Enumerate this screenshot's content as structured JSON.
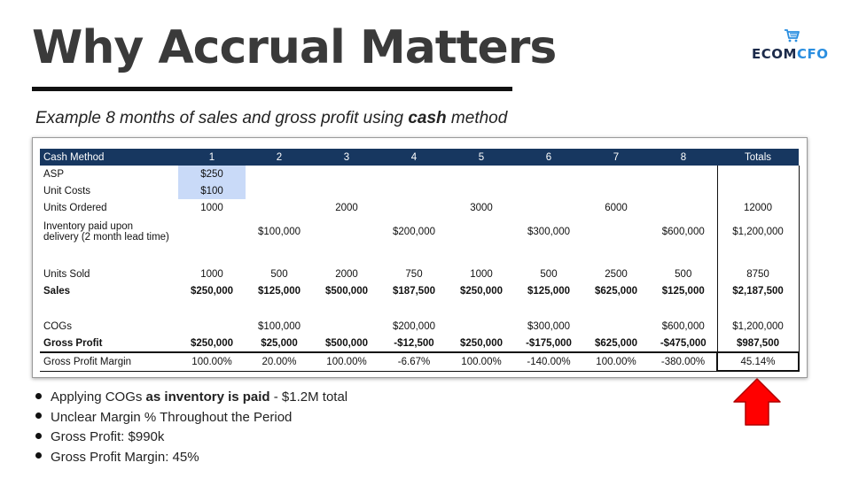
{
  "slide": {
    "title": "Why Accrual Matters",
    "subtitle_pre": "Example 8 months of sales and gross profit using ",
    "subtitle_bold": "cash",
    "subtitle_post": " method"
  },
  "logo": {
    "text_a": "ECOM",
    "text_b": "CFO",
    "icon": "shopping-cart-icon",
    "color_a": "#1b2a4a",
    "color_b": "#2a8ee0"
  },
  "table": {
    "header": [
      "Cash Method",
      "1",
      "2",
      "3",
      "4",
      "5",
      "6",
      "7",
      "8",
      "Totals"
    ],
    "rows": {
      "asp": [
        "ASP",
        "$250",
        "",
        "",
        "",
        "",
        "",
        "",
        "",
        ""
      ],
      "unit_costs": [
        "Unit Costs",
        "$100",
        "",
        "",
        "",
        "",
        "",
        "",
        "",
        ""
      ],
      "units_ordered": [
        "Units Ordered",
        "1000",
        "",
        "2000",
        "",
        "3000",
        "",
        "6000",
        "",
        "12000"
      ],
      "inventory_paid": [
        "Inventory paid upon",
        "",
        "$100,000",
        "",
        "$200,000",
        "",
        "$300,000",
        "",
        "$600,000",
        "$1,200,000"
      ],
      "inventory_paid_line2": "delivery (2 month lead time)",
      "units_sold": [
        "Units Sold",
        "1000",
        "500",
        "2000",
        "750",
        "1000",
        "500",
        "2500",
        "500",
        "8750"
      ],
      "sales": [
        "Sales",
        "$250,000",
        "$125,000",
        "$500,000",
        "$187,500",
        "$250,000",
        "$125,000",
        "$625,000",
        "$125,000",
        "$2,187,500"
      ],
      "cogs": [
        "COGs",
        "",
        "$100,000",
        "",
        "$200,000",
        "",
        "$300,000",
        "",
        "$600,000",
        "$1,200,000"
      ],
      "gross_profit": [
        "Gross Profit",
        "$250,000",
        "$25,000",
        "$500,000",
        "-$12,500",
        "$250,000",
        "-$175,000",
        "$625,000",
        "-$475,000",
        "$987,500"
      ],
      "gross_profit_margin": [
        "Gross Profit Margin",
        "100.00%",
        "20.00%",
        "100.00%",
        "-6.67%",
        "100.00%",
        "-140.00%",
        "100.00%",
        "-380.00%",
        "45.14%"
      ]
    },
    "colors": {
      "header_bg": "#173760",
      "highlight": "#c9daf8"
    }
  },
  "bullets": [
    {
      "pre": "Applying COGs ",
      "bold": "as inventory is paid",
      "post": " - $1.2M total"
    },
    {
      "pre": "Unclear Margin % Throughout the Period",
      "bold": "",
      "post": ""
    },
    {
      "pre": "Gross Profit: $990k",
      "bold": "",
      "post": ""
    },
    {
      "pre": "Gross Profit Margin: 45%",
      "bold": "",
      "post": ""
    }
  ],
  "arrow": {
    "icon": "up-arrow-icon",
    "color": "#ff0000"
  }
}
